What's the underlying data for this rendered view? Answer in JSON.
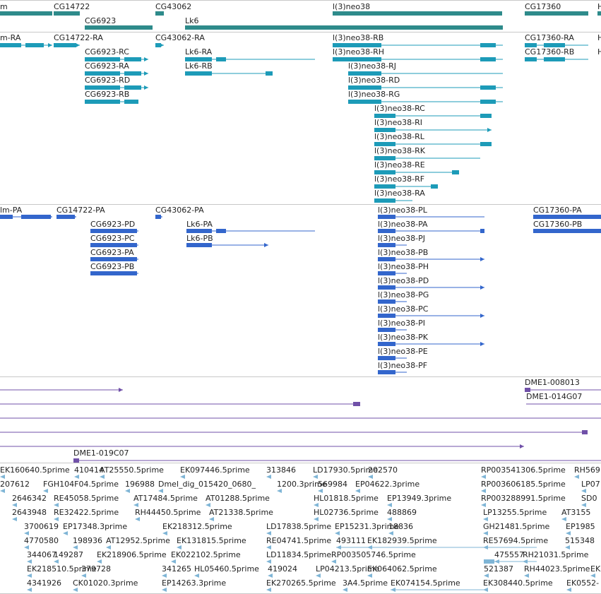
{
  "colors": {
    "gene": "#2e8b8b",
    "transcript": "#1d9bb8",
    "protein": "#3366cc",
    "clone": "#7050a8",
    "est": "#7fb5d6",
    "separator": "#c8c8c8"
  },
  "tracks": {
    "genes": {
      "labels": [
        {
          "text": "m"
        },
        {
          "text": "CG14722"
        },
        {
          "text": "CG6923"
        },
        {
          "text": "CG43062"
        },
        {
          "text": "Lk6"
        },
        {
          "text": "l(3)neo38"
        },
        {
          "text": "CG17360"
        },
        {
          "text": "H"
        }
      ]
    },
    "transcripts": {
      "labels": [
        {
          "text": "m-RA"
        },
        {
          "text": "CG14722-RA"
        },
        {
          "text": "CG43062-RA"
        },
        {
          "text": "l(3)neo38-RB"
        },
        {
          "text": "CG17360-RA"
        },
        {
          "text": "H"
        },
        {
          "text": "CG6923-RC"
        },
        {
          "text": "Lk6-RA"
        },
        {
          "text": "l(3)neo38-RH"
        },
        {
          "text": "CG17360-RB"
        },
        {
          "text": "H"
        },
        {
          "text": "CG6923-RA"
        },
        {
          "text": "Lk6-RB"
        },
        {
          "text": "l(3)neo38-RJ"
        },
        {
          "text": "CG6923-RD"
        },
        {
          "text": "l(3)neo38-RD"
        },
        {
          "text": "CG6923-RB"
        },
        {
          "text": "l(3)neo38-RG"
        },
        {
          "text": "l(3)neo38-RC"
        },
        {
          "text": "l(3)neo38-RI"
        },
        {
          "text": "l(3)neo38-RL"
        },
        {
          "text": "l(3)neo38-RK"
        },
        {
          "text": "l(3)neo38-RE"
        },
        {
          "text": "l(3)neo38-RF"
        },
        {
          "text": "l(3)neo38-RA"
        }
      ]
    },
    "proteins": {
      "labels": [
        {
          "text": "lm-PA"
        },
        {
          "text": "CG14722-PA"
        },
        {
          "text": "CG43062-PA"
        },
        {
          "text": "l(3)neo38-PL"
        },
        {
          "text": "CG17360-PA"
        },
        {
          "text": "CG6923-PD"
        },
        {
          "text": "Lk6-PA"
        },
        {
          "text": "l(3)neo38-PA"
        },
        {
          "text": "CG17360-PB"
        },
        {
          "text": "CG6923-PC"
        },
        {
          "text": "Lk6-PB"
        },
        {
          "text": "l(3)neo38-PJ"
        },
        {
          "text": "CG6923-PA"
        },
        {
          "text": "l(3)neo38-PB"
        },
        {
          "text": "CG6923-PB"
        },
        {
          "text": "l(3)neo38-PH"
        },
        {
          "text": "l(3)neo38-PD"
        },
        {
          "text": "l(3)neo38-PG"
        },
        {
          "text": "l(3)neo38-PC"
        },
        {
          "text": "l(3)neo38-PI"
        },
        {
          "text": "l(3)neo38-PK"
        },
        {
          "text": "l(3)neo38-PE"
        },
        {
          "text": "l(3)neo38-PF"
        }
      ]
    },
    "clones": {
      "labels": [
        {
          "text": "DME1-008013"
        },
        {
          "text": "DME1-014G07"
        },
        {
          "text": "DME1-019C07"
        }
      ]
    },
    "ests": {
      "labels": [
        {
          "text": "EK160640.5prime"
        },
        {
          "text": "410414"
        },
        {
          "text": "AT25550.5prime"
        },
        {
          "text": "EK097446.5prime"
        },
        {
          "text": "313846"
        },
        {
          "text": "LD17930.5prime"
        },
        {
          "text": "202570"
        },
        {
          "text": "RP003541306.5prime"
        },
        {
          "text": "RH569"
        },
        {
          "text": "207612"
        },
        {
          "text": "FGH104F04.5prime"
        },
        {
          "text": "196988"
        },
        {
          "text": "Dmel_dig_015420_0680_"
        },
        {
          "text": "1200.3prime"
        },
        {
          "text": "569984"
        },
        {
          "text": "EP04622.3prime"
        },
        {
          "text": "RP003606185.5prime"
        },
        {
          "text": "LP07"
        },
        {
          "text": "2646342"
        },
        {
          "text": "RE45058.5prime"
        },
        {
          "text": "AT17484.5prime"
        },
        {
          "text": "AT01288.5prime"
        },
        {
          "text": "HL01818.5prime"
        },
        {
          "text": "EP13949.3prime"
        },
        {
          "text": "RP003288991.5prime"
        },
        {
          "text": "SD0"
        },
        {
          "text": "2643948"
        },
        {
          "text": "RE32422.5prime"
        },
        {
          "text": "RH44450.5prime"
        },
        {
          "text": "AT21338.5prime"
        },
        {
          "text": "HL02736.5prime"
        },
        {
          "text": "488869"
        },
        {
          "text": "LP13255.5prime"
        },
        {
          "text": "AT3155"
        },
        {
          "text": "3700619"
        },
        {
          "text": "EP17348.3prime"
        },
        {
          "text": "EK218312.5prime"
        },
        {
          "text": "LD17838.5prime"
        },
        {
          "text": "EP15231.3prime"
        },
        {
          "text": "18836"
        },
        {
          "text": "GH21481.5prime"
        },
        {
          "text": "EP1985"
        },
        {
          "text": "4770580"
        },
        {
          "text": "198936"
        },
        {
          "text": "AT12952.5prime"
        },
        {
          "text": "EK131815.5prime"
        },
        {
          "text": "RE04741.5prime"
        },
        {
          "text": "493111"
        },
        {
          "text": "EK182939.5prime"
        },
        {
          "text": "RE57694.5prime"
        },
        {
          "text": "515348"
        },
        {
          "text": "344067"
        },
        {
          "text": "149287"
        },
        {
          "text": "EK218906.5prime"
        },
        {
          "text": "EK022102.5prime"
        },
        {
          "text": "LD11834.5prime"
        },
        {
          "text": "RP003505746.5prime"
        },
        {
          "text": "475557"
        },
        {
          "text": "RH21031.5prime"
        },
        {
          "text": "EK218510.5prime"
        },
        {
          "text": "379728"
        },
        {
          "text": "341265"
        },
        {
          "text": "HL05460.5prime"
        },
        {
          "text": "419024"
        },
        {
          "text": "LP04213.5prime"
        },
        {
          "text": "EK064062.5prime"
        },
        {
          "text": "521387"
        },
        {
          "text": "RH44023.5prime"
        },
        {
          "text": "EK1"
        },
        {
          "text": "4341926"
        },
        {
          "text": "CK01020.3prime"
        },
        {
          "text": "EP14263.3prime"
        },
        {
          "text": "EK270265.5prime"
        },
        {
          "text": "3A4.5prime"
        },
        {
          "text": "EK074154.5prime"
        },
        {
          "text": "EK308440.5prime"
        },
        {
          "text": "EK0552-"
        }
      ]
    }
  }
}
